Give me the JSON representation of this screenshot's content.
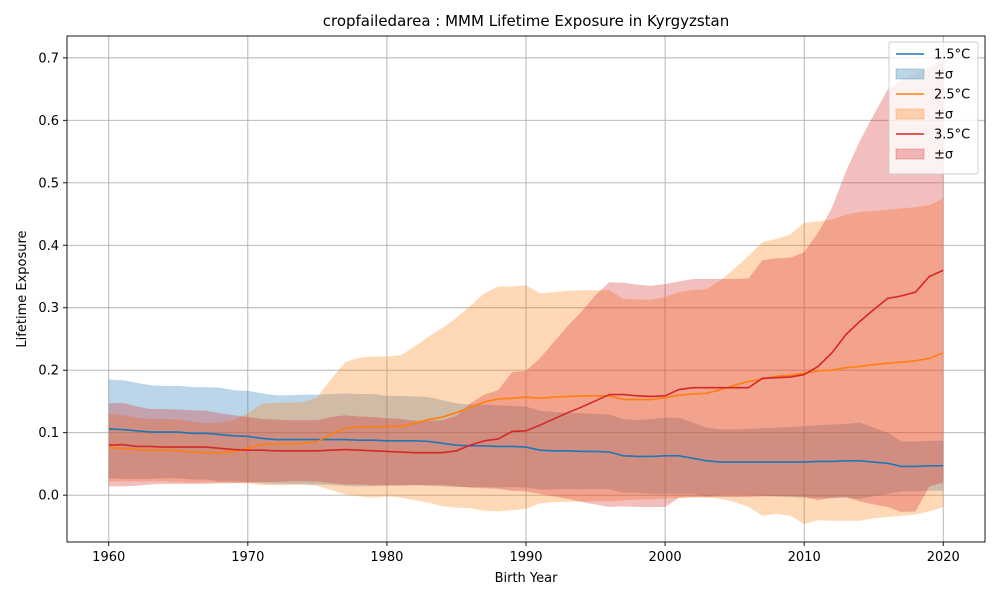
{
  "chart_data": {
    "type": "area",
    "title": "cropfailedarea : MMM Lifetime Exposure in Kyrgyzstan",
    "xlabel": "Birth Year",
    "ylabel": "Lifetime Exposure",
    "xlim": [
      1957,
      2023
    ],
    "ylim": [
      -0.075,
      0.735
    ],
    "xticks": [
      1960,
      1970,
      1980,
      1990,
      2000,
      2010,
      2020
    ],
    "yticks": [
      0.0,
      0.1,
      0.2,
      0.3,
      0.4,
      0.5,
      0.6,
      0.7
    ],
    "ytick_labels": [
      "0.0",
      "0.1",
      "0.2",
      "0.3",
      "0.4",
      "0.5",
      "0.6",
      "0.7"
    ],
    "grid": true,
    "legend_position": "top-right",
    "series": [
      {
        "name": "1.5°C",
        "band_name": "±σ",
        "color": "#1f77b4",
        "x": [
          1960,
          1961,
          1962,
          1963,
          1964,
          1965,
          1966,
          1967,
          1968,
          1969,
          1970,
          1971,
          1972,
          1973,
          1974,
          1975,
          1976,
          1977,
          1978,
          1979,
          1980,
          1981,
          1982,
          1983,
          1984,
          1985,
          1986,
          1987,
          1988,
          1989,
          1990,
          1991,
          1992,
          1993,
          1994,
          1995,
          1996,
          1997,
          1998,
          1999,
          2000,
          2001,
          2002,
          2003,
          2004,
          2005,
          2006,
          2007,
          2008,
          2009,
          2010,
          2011,
          2012,
          2013,
          2014,
          2015,
          2016,
          2017,
          2018,
          2019,
          2020
        ],
        "mean": [
          0.106,
          0.105,
          0.103,
          0.101,
          0.101,
          0.101,
          0.099,
          0.099,
          0.097,
          0.095,
          0.094,
          0.091,
          0.089,
          0.089,
          0.089,
          0.089,
          0.089,
          0.089,
          0.088,
          0.088,
          0.087,
          0.087,
          0.087,
          0.086,
          0.083,
          0.08,
          0.079,
          0.079,
          0.078,
          0.078,
          0.077,
          0.072,
          0.071,
          0.071,
          0.07,
          0.07,
          0.069,
          0.063,
          0.062,
          0.062,
          0.063,
          0.063,
          0.059,
          0.055,
          0.053,
          0.053,
          0.053,
          0.053,
          0.053,
          0.053,
          0.053,
          0.054,
          0.054,
          0.055,
          0.055,
          0.053,
          0.051,
          0.046,
          0.046,
          0.047,
          0.047
        ],
        "upper": [
          0.185,
          0.184,
          0.18,
          0.176,
          0.175,
          0.175,
          0.173,
          0.173,
          0.172,
          0.168,
          0.167,
          0.163,
          0.16,
          0.16,
          0.161,
          0.161,
          0.162,
          0.163,
          0.162,
          0.162,
          0.159,
          0.159,
          0.158,
          0.157,
          0.152,
          0.147,
          0.145,
          0.145,
          0.144,
          0.143,
          0.142,
          0.135,
          0.133,
          0.132,
          0.131,
          0.13,
          0.129,
          0.122,
          0.12,
          0.122,
          0.124,
          0.124,
          0.116,
          0.108,
          0.105,
          0.105,
          0.106,
          0.107,
          0.108,
          0.109,
          0.11,
          0.112,
          0.113,
          0.114,
          0.116,
          0.108,
          0.1,
          0.086,
          0.086,
          0.087,
          0.087
        ],
        "lower": [
          0.027,
          0.026,
          0.026,
          0.026,
          0.027,
          0.027,
          0.025,
          0.025,
          0.022,
          0.022,
          0.021,
          0.019,
          0.018,
          0.018,
          0.017,
          0.017,
          0.016,
          0.015,
          0.014,
          0.014,
          0.015,
          0.015,
          0.016,
          0.015,
          0.014,
          0.013,
          0.013,
          0.013,
          0.012,
          0.013,
          0.012,
          0.009,
          0.009,
          0.01,
          0.009,
          0.01,
          0.009,
          0.004,
          0.004,
          0.002,
          0.002,
          0.002,
          0.002,
          -0.002,
          0.001,
          0.001,
          0.0,
          -0.001,
          -0.002,
          -0.003,
          -0.004,
          -0.004,
          -0.005,
          -0.004,
          -0.006,
          -0.002,
          0.002,
          0.006,
          0.006,
          0.007,
          0.007
        ]
      },
      {
        "name": "2.5°C",
        "band_name": "±σ",
        "color": "#ff7f0e",
        "x": [
          1960,
          1961,
          1962,
          1963,
          1964,
          1965,
          1966,
          1967,
          1968,
          1969,
          1970,
          1971,
          1972,
          1973,
          1974,
          1975,
          1976,
          1977,
          1978,
          1979,
          1980,
          1981,
          1982,
          1983,
          1984,
          1985,
          1986,
          1987,
          1988,
          1989,
          1990,
          1991,
          1992,
          1993,
          1994,
          1995,
          1996,
          1997,
          1998,
          1999,
          2000,
          2001,
          2002,
          2003,
          2004,
          2005,
          2006,
          2007,
          2008,
          2009,
          2010,
          2011,
          2012,
          2013,
          2014,
          2015,
          2016,
          2017,
          2018,
          2019,
          2020
        ],
        "mean": [
          0.076,
          0.075,
          0.073,
          0.072,
          0.072,
          0.071,
          0.069,
          0.068,
          0.068,
          0.07,
          0.075,
          0.081,
          0.082,
          0.082,
          0.083,
          0.086,
          0.097,
          0.107,
          0.109,
          0.109,
          0.11,
          0.11,
          0.115,
          0.121,
          0.125,
          0.132,
          0.141,
          0.149,
          0.154,
          0.155,
          0.157,
          0.155,
          0.157,
          0.158,
          0.159,
          0.159,
          0.159,
          0.153,
          0.153,
          0.153,
          0.156,
          0.16,
          0.162,
          0.163,
          0.169,
          0.176,
          0.182,
          0.186,
          0.19,
          0.192,
          0.195,
          0.199,
          0.2,
          0.204,
          0.206,
          0.209,
          0.211,
          0.213,
          0.215,
          0.219,
          0.228
        ],
        "upper": [
          0.13,
          0.128,
          0.124,
          0.122,
          0.122,
          0.121,
          0.118,
          0.115,
          0.116,
          0.12,
          0.131,
          0.146,
          0.148,
          0.148,
          0.149,
          0.157,
          0.186,
          0.213,
          0.22,
          0.222,
          0.222,
          0.224,
          0.238,
          0.254,
          0.268,
          0.284,
          0.303,
          0.323,
          0.334,
          0.334,
          0.336,
          0.323,
          0.325,
          0.327,
          0.328,
          0.328,
          0.328,
          0.314,
          0.313,
          0.313,
          0.317,
          0.325,
          0.328,
          0.33,
          0.344,
          0.363,
          0.383,
          0.405,
          0.41,
          0.417,
          0.436,
          0.438,
          0.441,
          0.449,
          0.453,
          0.455,
          0.457,
          0.459,
          0.461,
          0.464,
          0.475
        ],
        "lower": [
          0.022,
          0.022,
          0.022,
          0.022,
          0.022,
          0.021,
          0.02,
          0.021,
          0.02,
          0.02,
          0.019,
          0.016,
          0.016,
          0.016,
          0.017,
          0.015,
          0.008,
          0.001,
          -0.002,
          -0.004,
          -0.002,
          -0.004,
          -0.008,
          -0.012,
          -0.018,
          -0.02,
          -0.021,
          -0.025,
          -0.026,
          -0.024,
          -0.022,
          -0.013,
          -0.011,
          -0.011,
          -0.01,
          -0.01,
          -0.01,
          -0.008,
          -0.007,
          -0.007,
          -0.005,
          -0.005,
          -0.004,
          -0.004,
          -0.006,
          -0.011,
          -0.019,
          -0.033,
          -0.03,
          -0.033,
          -0.046,
          -0.04,
          -0.041,
          -0.041,
          -0.041,
          -0.037,
          -0.035,
          -0.033,
          -0.031,
          -0.026,
          -0.019
        ]
      },
      {
        "name": "3.5°C",
        "band_name": "±σ",
        "color": "#d62728",
        "x": [
          1960,
          1961,
          1962,
          1963,
          1964,
          1965,
          1966,
          1967,
          1968,
          1969,
          1970,
          1971,
          1972,
          1973,
          1974,
          1975,
          1976,
          1977,
          1978,
          1979,
          1980,
          1981,
          1982,
          1983,
          1984,
          1985,
          1986,
          1987,
          1988,
          1989,
          1990,
          1991,
          1992,
          1993,
          1994,
          1995,
          1996,
          1997,
          1998,
          1999,
          2000,
          2001,
          2002,
          2003,
          2004,
          2005,
          2006,
          2007,
          2008,
          2009,
          2010,
          2011,
          2012,
          2013,
          2014,
          2015,
          2016,
          2017,
          2018,
          2019,
          2020
        ],
        "mean": [
          0.08,
          0.081,
          0.078,
          0.078,
          0.077,
          0.077,
          0.077,
          0.077,
          0.075,
          0.073,
          0.072,
          0.072,
          0.071,
          0.071,
          0.071,
          0.071,
          0.072,
          0.073,
          0.072,
          0.071,
          0.07,
          0.069,
          0.068,
          0.068,
          0.068,
          0.071,
          0.08,
          0.087,
          0.09,
          0.102,
          0.103,
          0.112,
          0.122,
          0.132,
          0.141,
          0.151,
          0.161,
          0.161,
          0.159,
          0.158,
          0.159,
          0.169,
          0.172,
          0.172,
          0.172,
          0.172,
          0.172,
          0.187,
          0.188,
          0.189,
          0.193,
          0.206,
          0.228,
          0.257,
          0.278,
          0.297,
          0.315,
          0.319,
          0.325,
          0.35,
          0.36
        ],
        "upper": [
          0.147,
          0.148,
          0.142,
          0.138,
          0.138,
          0.137,
          0.136,
          0.135,
          0.131,
          0.128,
          0.125,
          0.122,
          0.121,
          0.12,
          0.12,
          0.12,
          0.125,
          0.128,
          0.126,
          0.125,
          0.123,
          0.122,
          0.119,
          0.119,
          0.12,
          0.127,
          0.147,
          0.161,
          0.168,
          0.197,
          0.199,
          0.219,
          0.245,
          0.271,
          0.294,
          0.32,
          0.341,
          0.34,
          0.337,
          0.335,
          0.338,
          0.342,
          0.346,
          0.346,
          0.346,
          0.346,
          0.347,
          0.376,
          0.379,
          0.38,
          0.389,
          0.42,
          0.46,
          0.518,
          0.567,
          0.609,
          0.649,
          0.665,
          0.676,
          0.685,
          0.7
        ],
        "lower": [
          0.014,
          0.014,
          0.015,
          0.017,
          0.018,
          0.018,
          0.018,
          0.018,
          0.019,
          0.019,
          0.02,
          0.021,
          0.021,
          0.022,
          0.022,
          0.022,
          0.019,
          0.017,
          0.017,
          0.016,
          0.016,
          0.016,
          0.016,
          0.016,
          0.016,
          0.014,
          0.012,
          0.011,
          0.01,
          0.007,
          0.006,
          0.002,
          -0.002,
          -0.006,
          -0.011,
          -0.015,
          -0.019,
          -0.018,
          -0.019,
          -0.019,
          -0.019,
          -0.004,
          -0.003,
          -0.003,
          -0.003,
          -0.003,
          -0.003,
          -0.002,
          -0.002,
          -0.002,
          -0.003,
          -0.008,
          -0.004,
          -0.003,
          -0.01,
          -0.015,
          -0.019,
          -0.027,
          -0.026,
          0.014,
          0.02
        ]
      }
    ]
  }
}
